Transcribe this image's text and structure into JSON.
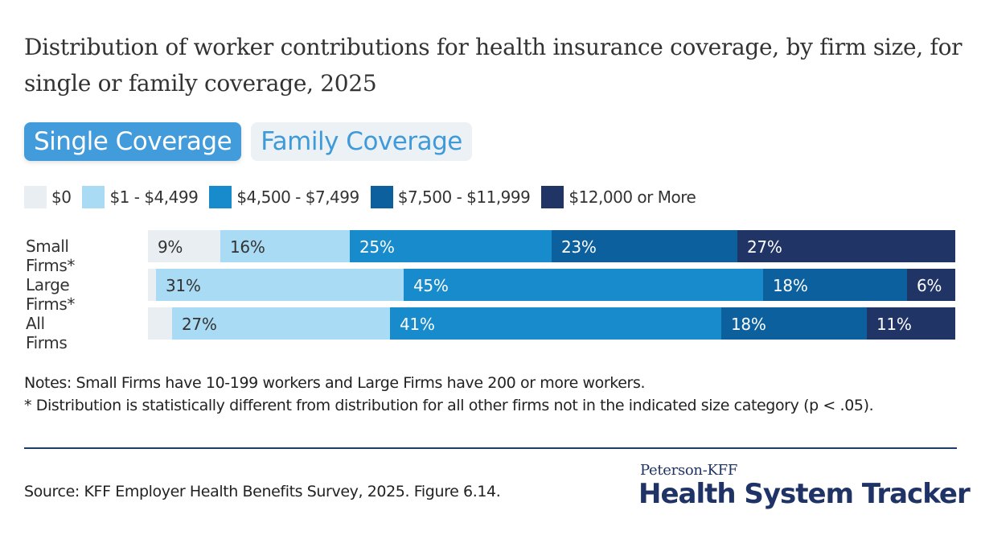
{
  "header": {
    "title": "Distribution of worker contributions for health insurance coverage, by firm size, for single or family coverage, 2025"
  },
  "tabs": [
    {
      "label": "Single Coverage",
      "active": true
    },
    {
      "label": "Family Coverage",
      "active": false
    }
  ],
  "colors": {
    "zero": "#e8eef2",
    "low": "#a9dbf4",
    "mid": "#178bcb",
    "high": "#0c609e",
    "top": "#213466",
    "tab_active": "#429bdb",
    "brand": "#1f3366"
  },
  "chart_data": {
    "type": "bar",
    "orientation": "horizontal",
    "stacked": true,
    "title": "Distribution of worker contributions for health insurance coverage, by firm size, for single or family coverage, 2025",
    "categories": [
      "Small Firms*",
      "Large Firms*",
      "All Firms"
    ],
    "series": [
      {
        "name": "$0",
        "color": "#e8eef2",
        "label_color": "#333333",
        "values": [
          9,
          1,
          3
        ],
        "labels": [
          "9%",
          "",
          ""
        ]
      },
      {
        "name": "$1 - $4,499",
        "color": "#a9dbf4",
        "label_color": "#333333",
        "values": [
          16,
          31,
          27
        ],
        "labels": [
          "16%",
          "31%",
          "27%"
        ]
      },
      {
        "name": "$4,500 - $7,499",
        "color": "#178bcb",
        "label_color": "#ffffff",
        "values": [
          25,
          45,
          41
        ],
        "labels": [
          "25%",
          "45%",
          "41%"
        ]
      },
      {
        "name": "$7,500 - $11,999",
        "color": "#0c609e",
        "label_color": "#ffffff",
        "values": [
          23,
          18,
          18
        ],
        "labels": [
          "23%",
          "18%",
          "18%"
        ]
      },
      {
        "name": "$12,000 or More",
        "color": "#213466",
        "label_color": "#ffffff",
        "values": [
          27,
          6,
          11
        ],
        "labels": [
          "27%",
          "6%",
          "11%"
        ]
      }
    ],
    "xlim": [
      0,
      100
    ],
    "xlabel": "",
    "ylabel": "",
    "grid": false,
    "legend_position": "top-left"
  },
  "footer": {
    "notes_line1": "Notes: Small Firms have 10-199 workers and Large Firms have 200 or more workers.",
    "notes_line2": "* Distribution is statistically different from distribution for all other firms not in the indicated size category (p < .05).",
    "source": "Source: KFF Employer Health Benefits Survey, 2025. Figure 6.14.",
    "brand_top": "Peterson-KFF",
    "brand_main": "Health System Tracker"
  }
}
